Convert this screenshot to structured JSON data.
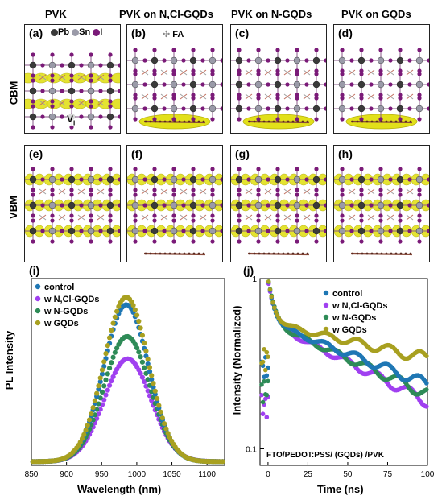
{
  "column_titles": [
    "PVK",
    "PVK on N,Cl-GQDs",
    "PVK on N-GQDs",
    "PVK on GQDs"
  ],
  "row_titles": [
    "CBM",
    "VBM"
  ],
  "panel_labels": [
    "(a)",
    "(b)",
    "(c)",
    "(d)",
    "(e)",
    "(f)",
    "(g)",
    "(h)"
  ],
  "atom_legend": {
    "pb": "Pb",
    "sn": "Sn",
    "i": "I",
    "fa": "FA",
    "vacancy": "V",
    "vacancy_sub": "I"
  },
  "atom_colors": {
    "pb": "#3a3a3a",
    "sn": "#9a9aa8",
    "i": "#7a1a78",
    "density": "#e2e01a",
    "density_edge": "#b5b010"
  },
  "chart_i": {
    "label": "(i)",
    "legend": [
      "control",
      "w N,Cl-GQDs",
      "w N-GQDs",
      "w GQDs"
    ],
    "colors": [
      "#1f77b4",
      "#a040f0",
      "#2e8b57",
      "#a8a020"
    ],
    "xlabel": "Wavelength (nm)",
    "ylabel": "PL Intensity",
    "xticks": [
      "850",
      "900",
      "950",
      "1000",
      "1050",
      "1100"
    ]
  },
  "chart_j": {
    "label": "(j)",
    "legend": [
      "control",
      "w N,Cl-GQDs",
      "w N-GQDs",
      "w GQDs"
    ],
    "colors": [
      "#1f77b4",
      "#a040f0",
      "#2e8b57",
      "#a8a020"
    ],
    "xlabel": "Time (ns)",
    "ylabel": "Intensity (Normalized)",
    "annotation": "FTO/PEDOT:PSS/ (GQDs) /PVK",
    "xticks": [
      "0",
      "25",
      "50",
      "75",
      "100"
    ],
    "yticks": [
      "1",
      "0.1"
    ]
  },
  "chart_data": [
    {
      "type": "scatter",
      "x_range": [
        850,
        1125
      ],
      "ylim": [
        0,
        1
      ],
      "series": [
        {
          "name": "control",
          "center": 985,
          "peak": 0.84,
          "width": 38
        },
        {
          "name": "w N,Cl-GQDs",
          "center": 987,
          "peak": 0.55,
          "width": 40
        },
        {
          "name": "w N-GQDs",
          "center": 986,
          "peak": 0.67,
          "width": 39
        },
        {
          "name": "w GQDs",
          "center": 985,
          "peak": 0.88,
          "width": 38
        }
      ]
    },
    {
      "type": "scatter",
      "x_range": [
        -5,
        100
      ],
      "ylim": [
        0.08,
        1.0
      ],
      "y_scale": "log",
      "series": [
        {
          "name": "control",
          "pre": 0.3,
          "end": 0.24
        },
        {
          "name": "w N,Cl-GQDs",
          "pre": 0.18,
          "end": 0.19
        },
        {
          "name": "w N-GQDs",
          "pre": 0.22,
          "end": 0.21
        },
        {
          "name": "w GQDs",
          "pre": 0.34,
          "end": 0.34
        }
      ]
    }
  ]
}
